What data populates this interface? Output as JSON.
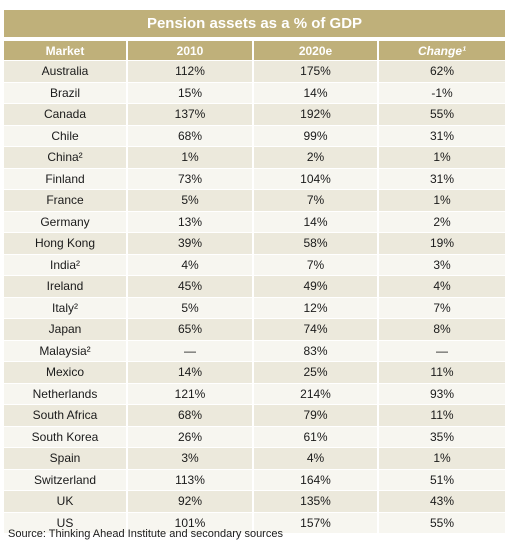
{
  "title": "Pension assets as a % of GDP",
  "columns": [
    "Market",
    "2010",
    "2020e",
    "Change¹"
  ],
  "rows": [
    [
      "Australia",
      "112%",
      "175%",
      "62%"
    ],
    [
      "Brazil",
      "15%",
      "14%",
      "-1%"
    ],
    [
      "Canada",
      "137%",
      "192%",
      "55%"
    ],
    [
      "Chile",
      "68%",
      "99%",
      "31%"
    ],
    [
      "China²",
      "1%",
      "2%",
      "1%"
    ],
    [
      "Finland",
      "73%",
      "104%",
      "31%"
    ],
    [
      "France",
      "5%",
      "7%",
      "1%"
    ],
    [
      "Germany",
      "13%",
      "14%",
      "2%"
    ],
    [
      "Hong Kong",
      "39%",
      "58%",
      "19%"
    ],
    [
      "India²",
      "4%",
      "7%",
      "3%"
    ],
    [
      "Ireland",
      "45%",
      "49%",
      "4%"
    ],
    [
      "Italy²",
      "5%",
      "12%",
      "7%"
    ],
    [
      "Japan",
      "65%",
      "74%",
      "8%"
    ],
    [
      "Malaysia²",
      "—",
      "83%",
      "—"
    ],
    [
      "Mexico",
      "14%",
      "25%",
      "11%"
    ],
    [
      "Netherlands",
      "121%",
      "214%",
      "93%"
    ],
    [
      "South Africa",
      "68%",
      "79%",
      "11%"
    ],
    [
      "South Korea",
      "26%",
      "61%",
      "35%"
    ],
    [
      "Spain",
      "3%",
      "4%",
      "1%"
    ],
    [
      "Switzerland",
      "113%",
      "164%",
      "51%"
    ],
    [
      "UK",
      "92%",
      "135%",
      "43%"
    ],
    [
      "US",
      "101%",
      "157%",
      "55%"
    ]
  ],
  "source": "Source: Thinking Ahead Institute and secondary sources",
  "colors": {
    "header_bg": "#bfb07a",
    "row_odd": "#ece9dc",
    "row_even": "#f7f6f0"
  }
}
